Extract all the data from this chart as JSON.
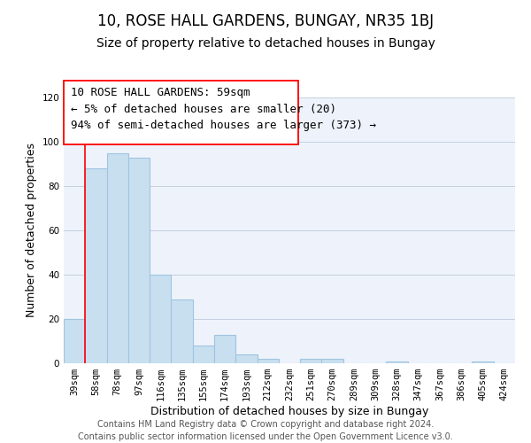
{
  "title": "10, ROSE HALL GARDENS, BUNGAY, NR35 1BJ",
  "subtitle": "Size of property relative to detached houses in Bungay",
  "xlabel": "Distribution of detached houses by size in Bungay",
  "ylabel": "Number of detached properties",
  "categories": [
    "39sqm",
    "58sqm",
    "78sqm",
    "97sqm",
    "116sqm",
    "135sqm",
    "155sqm",
    "174sqm",
    "193sqm",
    "212sqm",
    "232sqm",
    "251sqm",
    "270sqm",
    "289sqm",
    "309sqm",
    "328sqm",
    "347sqm",
    "367sqm",
    "386sqm",
    "405sqm",
    "424sqm"
  ],
  "values": [
    20,
    88,
    95,
    93,
    40,
    29,
    8,
    13,
    4,
    2,
    0,
    2,
    2,
    0,
    0,
    1,
    0,
    0,
    0,
    1,
    0
  ],
  "bar_color": "#c8dff0",
  "bar_edge_color": "#a0c4e0",
  "annotation_box_text_line1": "10 ROSE HALL GARDENS: 59sqm",
  "annotation_box_text_line2": "← 5% of detached houses are smaller (20)",
  "annotation_box_text_line3": "94% of semi-detached houses are larger (373) →",
  "ylim": [
    0,
    120
  ],
  "yticks": [
    0,
    20,
    40,
    60,
    80,
    100,
    120
  ],
  "footer_line1": "Contains HM Land Registry data © Crown copyright and database right 2024.",
  "footer_line2": "Contains public sector information licensed under the Open Government Licence v3.0.",
  "background_color": "#eef3fb",
  "grid_color": "#c5cfe0",
  "title_fontsize": 12,
  "subtitle_fontsize": 10,
  "axis_label_fontsize": 9,
  "tick_label_fontsize": 7.5,
  "annotation_fontsize": 9,
  "footer_fontsize": 7
}
